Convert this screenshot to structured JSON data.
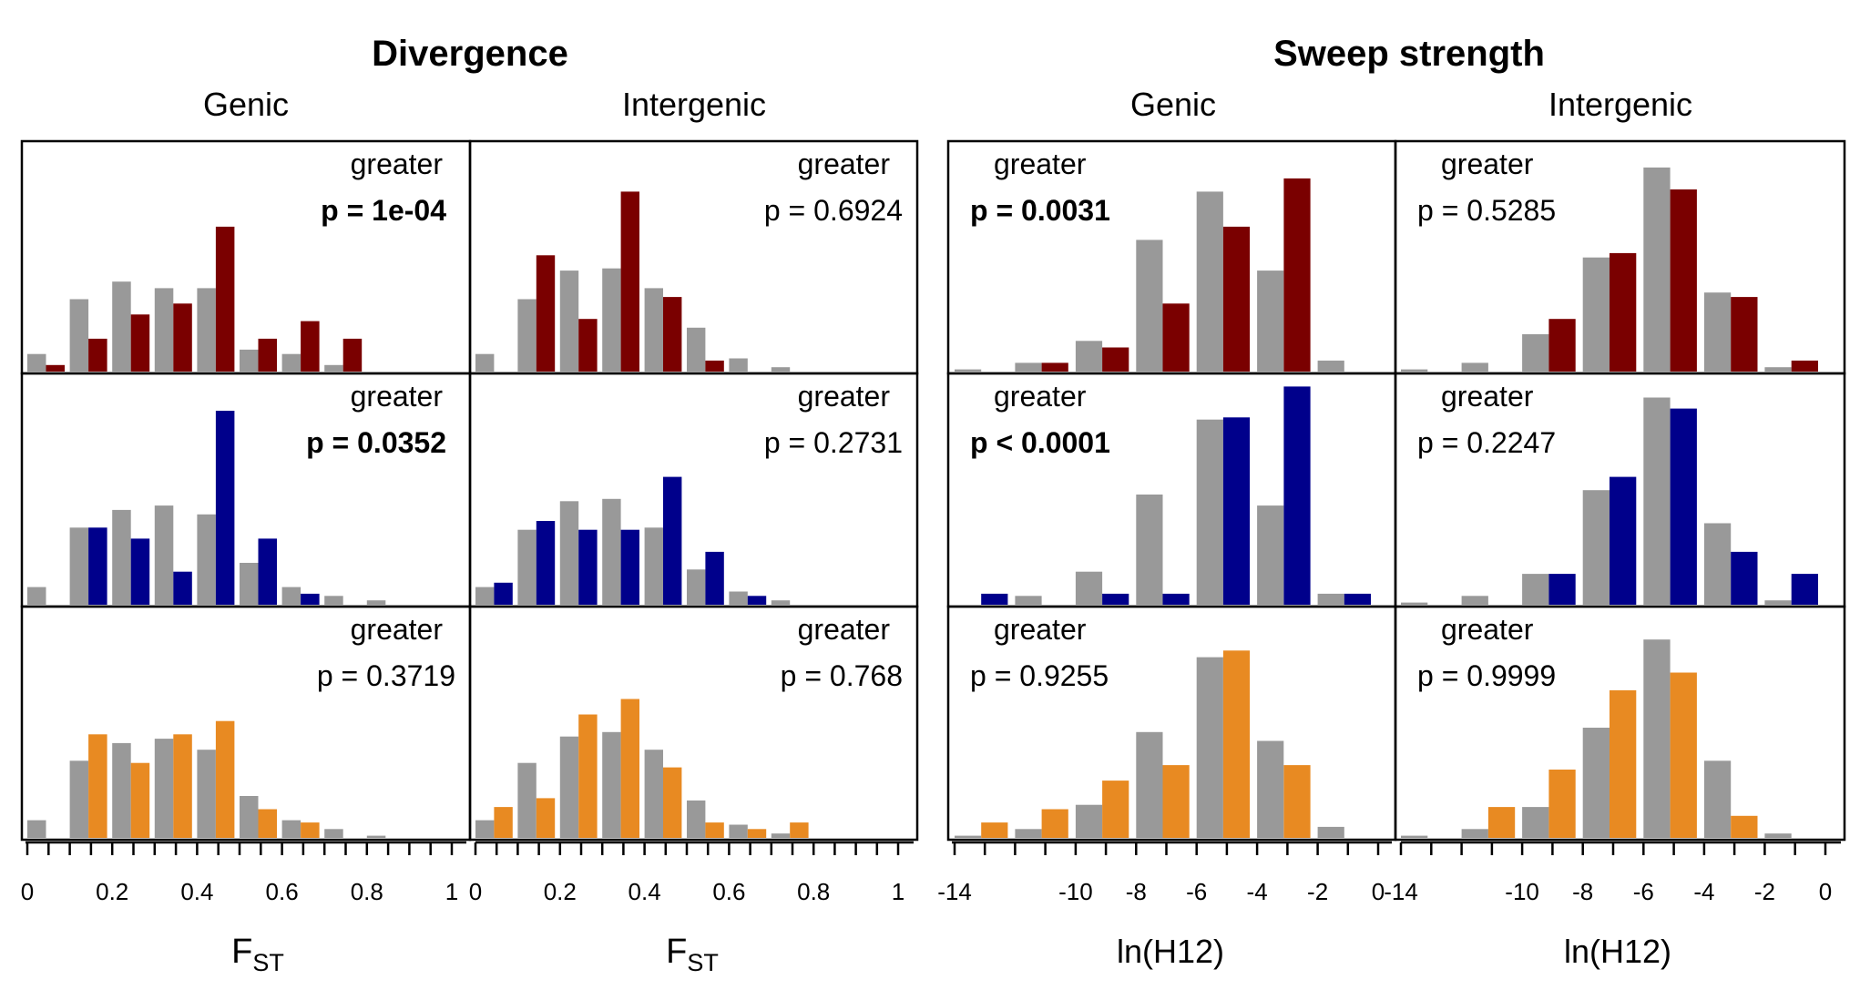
{
  "colors": {
    "null": "#999999",
    "red": "#7a0000",
    "blue": "#00008b",
    "orange": "#e88a22"
  },
  "sections": [
    {
      "title": "Divergence",
      "subtitles": [
        "Genic",
        "Intergenic"
      ],
      "xlabel": "F",
      "xlabel_sub": "ST",
      "ticks": [
        "0",
        "0.2",
        "0.4",
        "0.6",
        "0.8",
        "1"
      ]
    },
    {
      "title": "Sweep strength",
      "subtitles": [
        "Genic",
        "Intergenic"
      ],
      "xlabel": "ln(H12)",
      "xlabel_sub": "",
      "ticks": [
        "-14",
        "-10",
        "-8",
        "-6",
        "-4",
        "-2",
        "0"
      ]
    }
  ],
  "chart_data": [
    {
      "type": "bar",
      "section": "Divergence",
      "column": "Genic",
      "color": "red",
      "test": "greater",
      "p": "p = 1e-04",
      "significant": true,
      "xlim": [
        0,
        1
      ],
      "bin_start": 0,
      "bin_width": 0.1,
      "series": [
        {
          "values": [
            0.08,
            0.33,
            0.41,
            0.38,
            0.38,
            0.1,
            0.08,
            0.03,
            0.0,
            0.0
          ]
        },
        {
          "values": [
            0.03,
            0.15,
            0.26,
            0.31,
            0.66,
            0.15,
            0.23,
            0.15,
            0.0,
            0.0
          ]
        }
      ]
    },
    {
      "type": "bar",
      "section": "Divergence",
      "column": "Intergenic",
      "color": "red",
      "test": "greater",
      "p": "p = 0.6924",
      "significant": false,
      "xlim": [
        0,
        1
      ],
      "bin_start": 0,
      "bin_width": 0.1,
      "series": [
        {
          "values": [
            0.08,
            0.33,
            0.46,
            0.47,
            0.38,
            0.2,
            0.06,
            0.02,
            0.0,
            0.0
          ]
        },
        {
          "values": [
            0.0,
            0.53,
            0.24,
            0.82,
            0.34,
            0.05,
            0.0,
            0.0,
            0.0,
            0.0
          ]
        }
      ]
    },
    {
      "type": "bar",
      "section": "Sweep strength",
      "column": "Genic",
      "color": "red",
      "test": "greater",
      "p": "p = 0.0031",
      "significant": true,
      "xlim": [
        -14,
        0
      ],
      "bin_start": -14,
      "bin_width": 2,
      "series": [
        {
          "values": [
            0.01,
            0.04,
            0.14,
            0.6,
            0.82,
            0.46,
            0.05
          ]
        },
        {
          "values": [
            0.0,
            0.04,
            0.11,
            0.31,
            0.66,
            0.88,
            0.0
          ]
        }
      ]
    },
    {
      "type": "bar",
      "section": "Sweep strength",
      "column": "Intergenic",
      "color": "red",
      "test": "greater",
      "p": "p = 0.5285",
      "significant": false,
      "xlim": [
        -14,
        0
      ],
      "bin_start": -14,
      "bin_width": 2,
      "series": [
        {
          "values": [
            0.01,
            0.04,
            0.17,
            0.52,
            0.93,
            0.36,
            0.02
          ]
        },
        {
          "values": [
            0.0,
            0.0,
            0.24,
            0.54,
            0.83,
            0.34,
            0.05
          ]
        }
      ]
    },
    {
      "type": "bar",
      "section": "Divergence",
      "column": "Genic",
      "color": "blue",
      "test": "greater",
      "p": "p = 0.0352",
      "significant": true,
      "xlim": [
        0,
        1
      ],
      "bin_start": 0,
      "bin_width": 0.1,
      "series": [
        {
          "values": [
            0.08,
            0.35,
            0.43,
            0.45,
            0.41,
            0.19,
            0.08,
            0.04,
            0.02,
            0.0
          ]
        },
        {
          "values": [
            0.0,
            0.35,
            0.3,
            0.15,
            0.88,
            0.3,
            0.05,
            0.0,
            0.0,
            0.0
          ]
        }
      ]
    },
    {
      "type": "bar",
      "section": "Divergence",
      "column": "Intergenic",
      "color": "blue",
      "test": "greater",
      "p": "p = 0.2731",
      "significant": false,
      "xlim": [
        0,
        1
      ],
      "bin_start": 0,
      "bin_width": 0.1,
      "series": [
        {
          "values": [
            0.08,
            0.34,
            0.47,
            0.48,
            0.35,
            0.16,
            0.06,
            0.02,
            0.0,
            0.0
          ]
        },
        {
          "values": [
            0.1,
            0.38,
            0.34,
            0.34,
            0.58,
            0.24,
            0.04,
            0.0,
            0.0,
            0.0
          ]
        }
      ]
    },
    {
      "type": "bar",
      "section": "Sweep strength",
      "column": "Genic",
      "color": "blue",
      "test": "greater",
      "p": "p < 0.0001",
      "significant": true,
      "xlim": [
        -14,
        0
      ],
      "bin_start": -14,
      "bin_width": 2,
      "series": [
        {
          "values": [
            0.0,
            0.04,
            0.15,
            0.5,
            0.84,
            0.45,
            0.05
          ]
        },
        {
          "values": [
            0.05,
            0.0,
            0.05,
            0.05,
            0.85,
            0.99,
            0.05
          ]
        }
      ]
    },
    {
      "type": "bar",
      "section": "Sweep strength",
      "column": "Intergenic",
      "color": "blue",
      "test": "greater",
      "p": "p = 0.2247",
      "significant": false,
      "xlim": [
        -14,
        0
      ],
      "bin_start": -14,
      "bin_width": 2,
      "series": [
        {
          "values": [
            0.01,
            0.04,
            0.14,
            0.52,
            0.94,
            0.37,
            0.02
          ]
        },
        {
          "values": [
            0.0,
            0.0,
            0.14,
            0.58,
            0.89,
            0.24,
            0.14
          ]
        }
      ]
    },
    {
      "type": "bar",
      "section": "Divergence",
      "column": "Genic",
      "color": "orange",
      "test": "greater",
      "p": "p = 0.3719",
      "significant": false,
      "xlim": [
        0,
        1
      ],
      "bin_start": 0,
      "bin_width": 0.1,
      "series": [
        {
          "values": [
            0.08,
            0.35,
            0.43,
            0.45,
            0.4,
            0.19,
            0.08,
            0.04,
            0.01,
            0.0
          ]
        },
        {
          "values": [
            0.0,
            0.47,
            0.34,
            0.47,
            0.53,
            0.13,
            0.07,
            0.0,
            0.0,
            0.0
          ]
        }
      ]
    },
    {
      "type": "bar",
      "section": "Divergence",
      "column": "Intergenic",
      "color": "orange",
      "test": "greater",
      "p": "p = 0.768",
      "significant": false,
      "xlim": [
        0,
        1
      ],
      "bin_start": 0,
      "bin_width": 0.1,
      "series": [
        {
          "values": [
            0.08,
            0.34,
            0.46,
            0.48,
            0.4,
            0.17,
            0.06,
            0.02,
            0.0,
            0.0
          ]
        },
        {
          "values": [
            0.14,
            0.18,
            0.56,
            0.63,
            0.32,
            0.07,
            0.04,
            0.07,
            0.0,
            0.0
          ]
        }
      ]
    },
    {
      "type": "bar",
      "section": "Sweep strength",
      "column": "Genic",
      "color": "orange",
      "test": "greater",
      "p": "p = 0.9255",
      "significant": false,
      "xlim": [
        -14,
        0
      ],
      "bin_start": -14,
      "bin_width": 2,
      "series": [
        {
          "values": [
            0.01,
            0.04,
            0.15,
            0.48,
            0.82,
            0.44,
            0.05
          ]
        },
        {
          "values": [
            0.07,
            0.13,
            0.26,
            0.33,
            0.85,
            0.33,
            0.0
          ]
        }
      ]
    },
    {
      "type": "bar",
      "section": "Sweep strength",
      "column": "Intergenic",
      "color": "orange",
      "test": "greater",
      "p": "p = 0.9999",
      "significant": false,
      "xlim": [
        -14,
        0
      ],
      "bin_start": -14,
      "bin_width": 2,
      "series": [
        {
          "values": [
            0.01,
            0.04,
            0.14,
            0.5,
            0.9,
            0.35,
            0.02
          ]
        },
        {
          "values": [
            0.0,
            0.14,
            0.31,
            0.67,
            0.75,
            0.1,
            0.0
          ]
        }
      ]
    }
  ]
}
